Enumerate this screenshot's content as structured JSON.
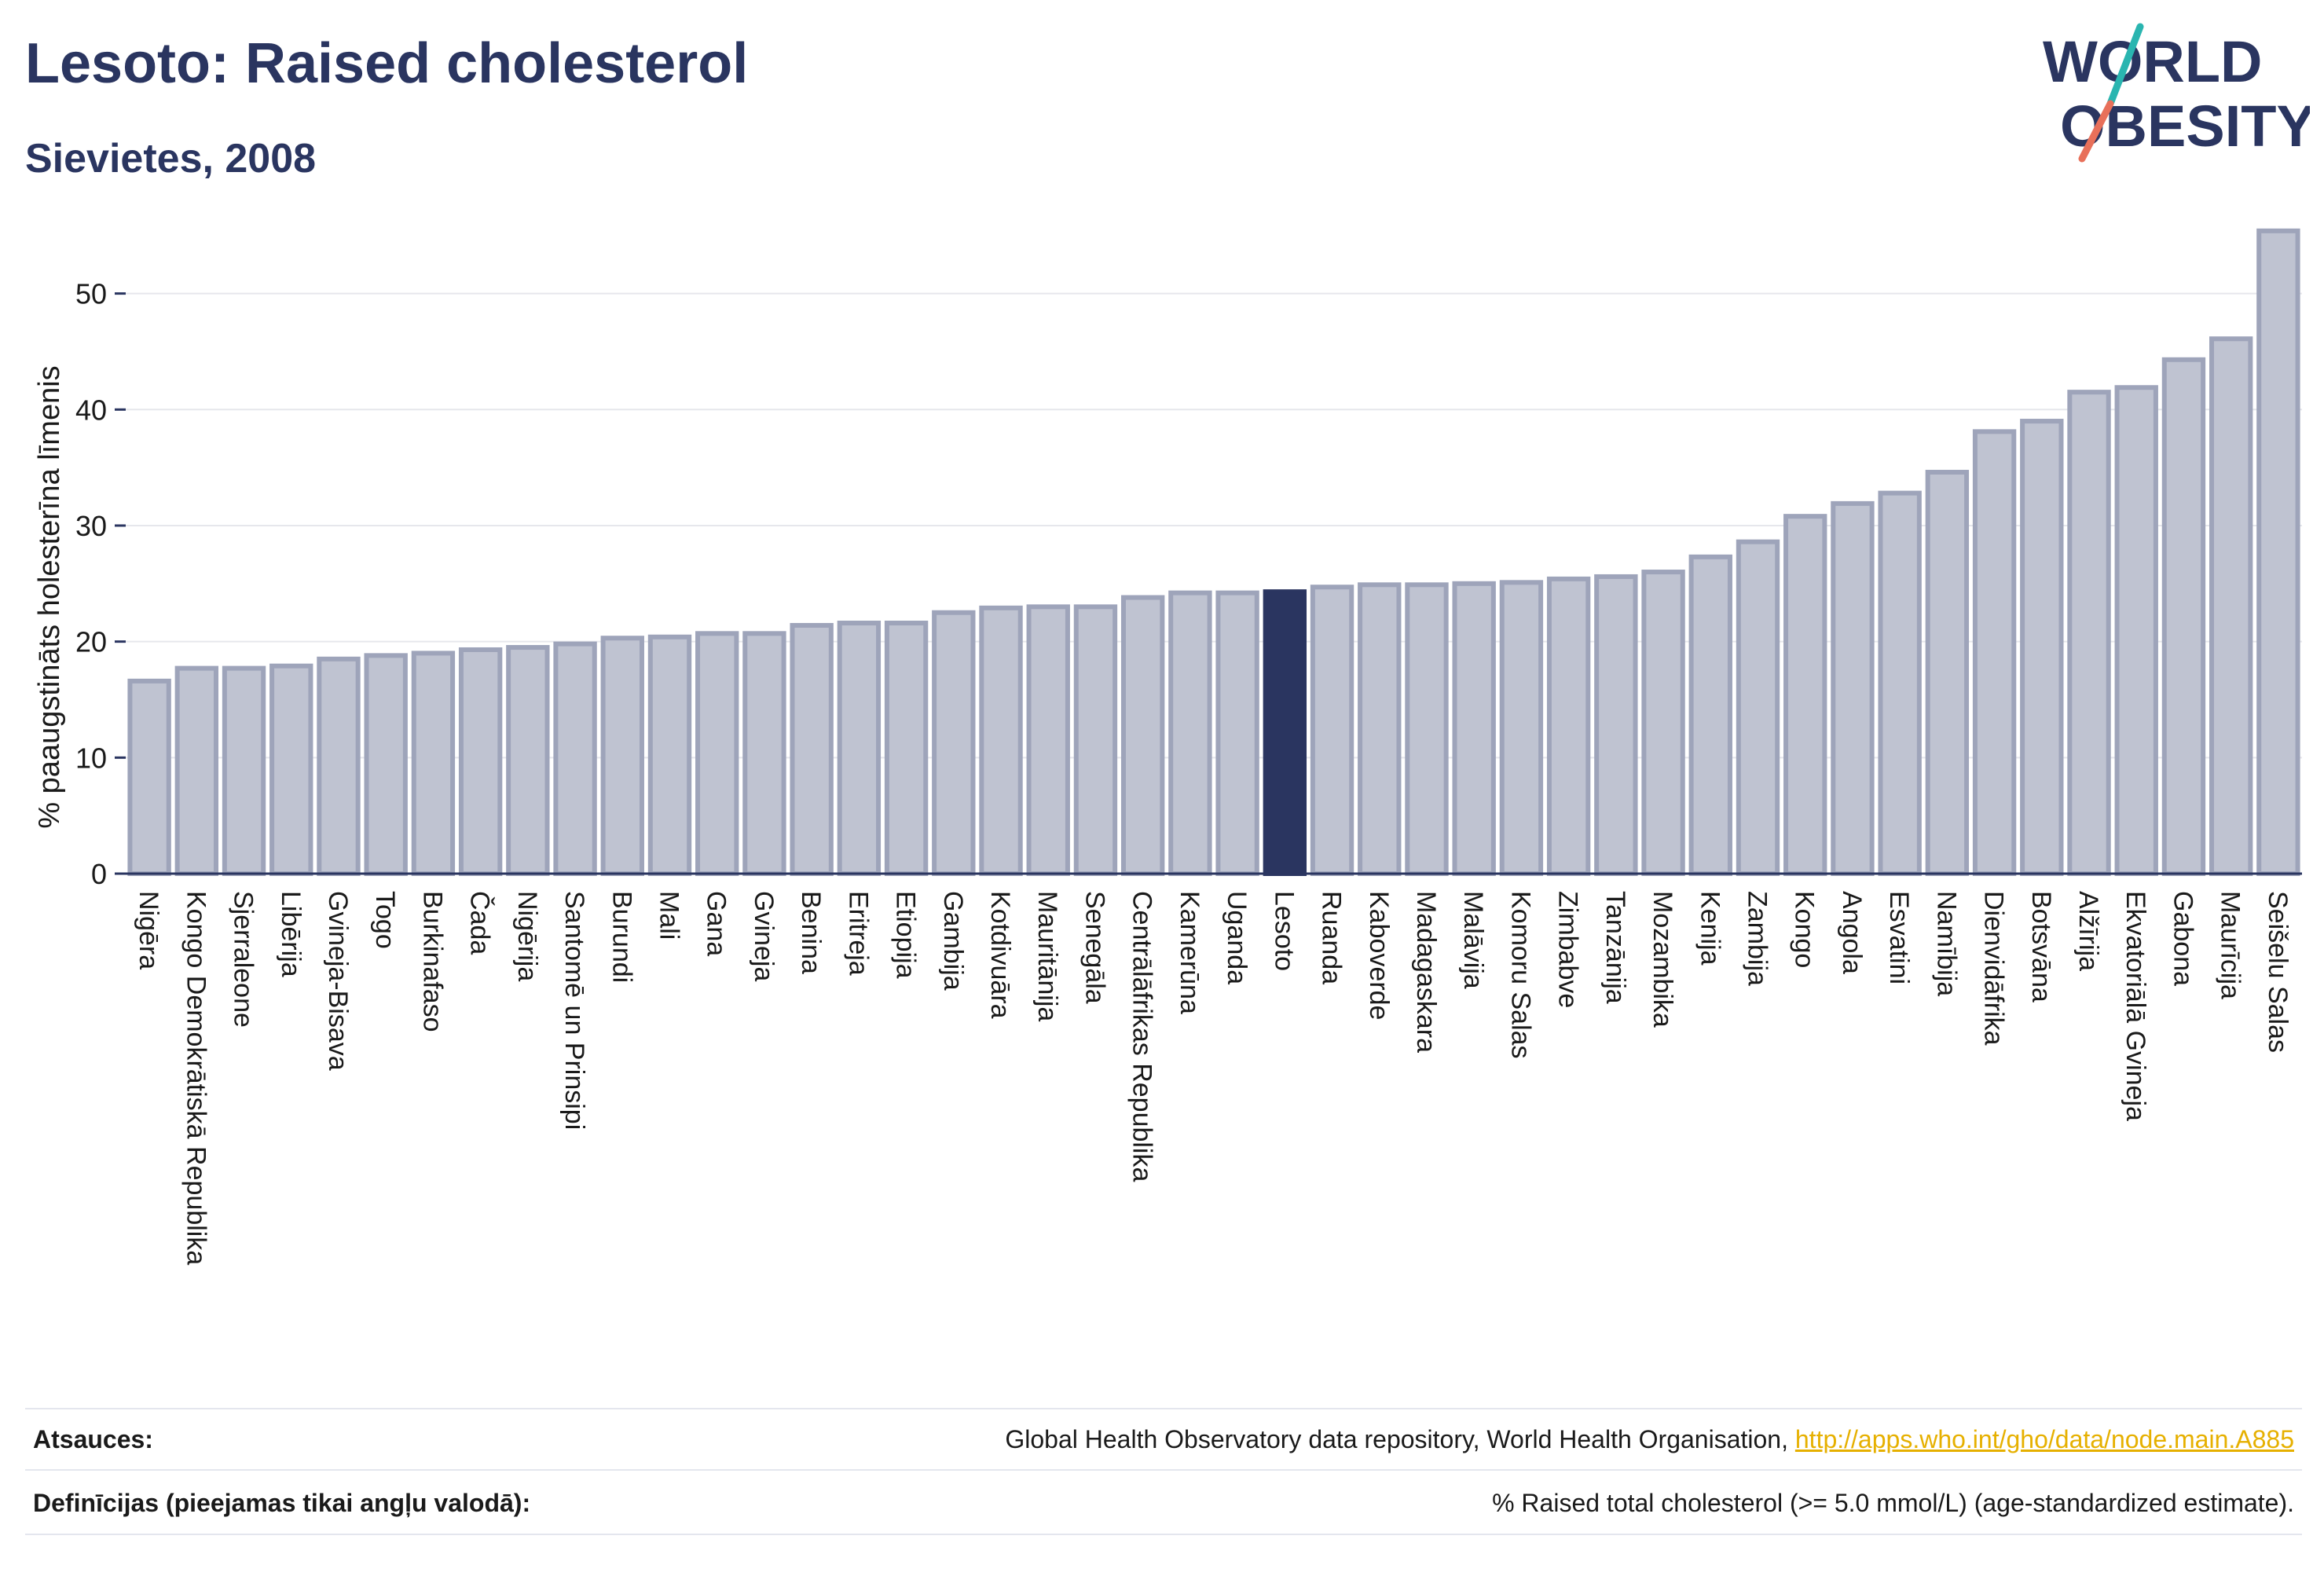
{
  "header": {
    "title": "Lesoto: Raised cholesterol",
    "subtitle": "Sievietes, 2008"
  },
  "logo": {
    "line1": "WORLD",
    "line2": "OBESITY",
    "accent_teal": "#2ab5b0",
    "accent_coral": "#e8705a",
    "text_color": "#2a3560"
  },
  "colors": {
    "bar_fill": "#bfc3d1",
    "bar_stroke": "#9ea4ba",
    "highlight_fill": "#2a3560",
    "grid": "#e6e7ec",
    "axis": "#2a3560",
    "text": "#1a1a1a"
  },
  "chart_data": {
    "type": "bar",
    "ylabel": "% paaugstināts holesterīna līmenis",
    "xlabel": "",
    "ylim": [
      0,
      56
    ],
    "yticks": [
      0,
      10,
      20,
      30,
      40,
      50
    ],
    "grid": true,
    "highlight": "Lesoto",
    "categories": [
      "Nigēra",
      "Kongo Demokrātiskā Republika",
      "Sjerraleone",
      "Libērija",
      "Gvineja-Bisava",
      "Togo",
      "Burkinafaso",
      "Čada",
      "Nigērija",
      "Santomē un Prinsipi",
      "Burundi",
      "Mali",
      "Gana",
      "Gvineja",
      "Benina",
      "Eritreja",
      "Etiopija",
      "Gambija",
      "Kotdivuāra",
      "Mauritānija",
      "Senegāla",
      "Centrālāfrikas Republika",
      "Kamerūna",
      "Uganda",
      "Lesoto",
      "Ruanda",
      "Kaboverde",
      "Madagaskara",
      "Malāvija",
      "Komoru Salas",
      "Zimbabve",
      "Tanzānija",
      "Mozambika",
      "Kenija",
      "Zambija",
      "Kongo",
      "Angola",
      "Esvatini",
      "Namībija",
      "Dienvidāfrika",
      "Botsvāna",
      "Alžīrija",
      "Ekvatoriālā Gvineja",
      "Gabona",
      "Maurīcija",
      "Seišelu Salas"
    ],
    "values": [
      16.6,
      17.7,
      17.7,
      17.9,
      18.5,
      18.8,
      19.0,
      19.3,
      19.5,
      19.8,
      20.3,
      20.4,
      20.7,
      20.7,
      21.4,
      21.6,
      21.6,
      22.5,
      22.9,
      23.0,
      23.0,
      23.8,
      24.2,
      24.2,
      24.3,
      24.7,
      24.9,
      24.9,
      25.0,
      25.1,
      25.4,
      25.6,
      26.0,
      27.3,
      28.6,
      30.8,
      31.9,
      32.8,
      34.6,
      38.1,
      39.0,
      41.5,
      41.9,
      44.3,
      46.1,
      55.4
    ]
  },
  "footer": {
    "sources_label": "Atsauces:",
    "sources_text": "Global Health Observatory data repository, World Health Organisation, ",
    "sources_link": "http://apps.who.int/gho/data/node.main.A885",
    "definitions_label": "Definīcijas (pieejamas tikai angļu valodā):",
    "definitions_text": "% Raised total cholesterol (>= 5.0 mmol/L) (age-standardized estimate)."
  }
}
